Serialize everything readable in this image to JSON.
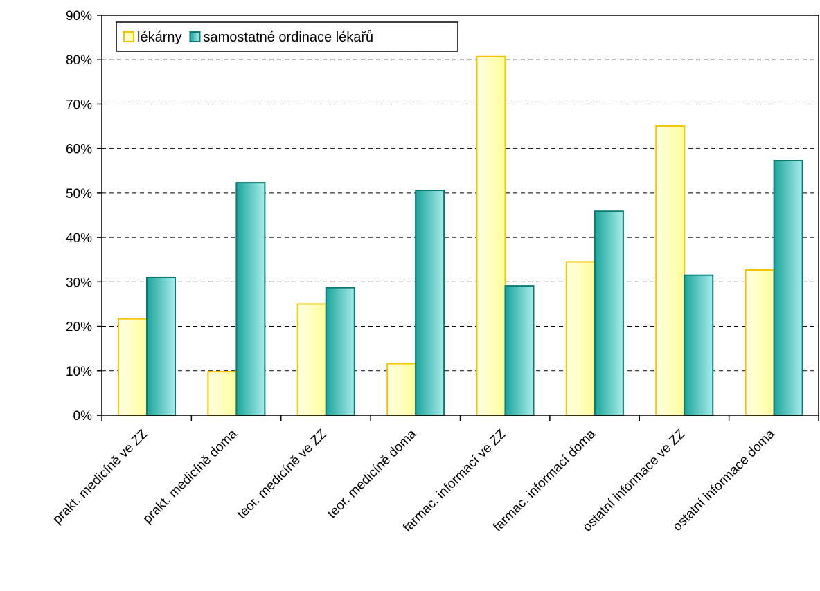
{
  "chart_data": {
    "type": "bar",
    "title": "",
    "xlabel": "",
    "ylabel": "",
    "ylim": [
      0,
      90
    ],
    "y_tick_step": 10,
    "y_tick_suffix": "%",
    "grid": "horizontal dashed",
    "legend_position": "top-left",
    "categories": [
      "prakt. medicíně  ve ZZ",
      "prakt. medicíně doma",
      "teor. medicíně  ve ZZ",
      "teor. medicíně doma",
      "farmac. informací  ve ZZ",
      "farmac. informací doma",
      "ostatní informace ve ZZ",
      "ostatní informace doma"
    ],
    "series": [
      {
        "name": "lékárny",
        "color": "#ffff99",
        "stroke": "#f5c400",
        "values": [
          21.7,
          9.8,
          25.0,
          11.6,
          80.7,
          34.5,
          65.1,
          32.7
        ]
      },
      {
        "name": "samostatné ordinace lékařů",
        "color": "#33b8b0",
        "stroke": "#0a7a72",
        "values": [
          31.0,
          52.3,
          28.7,
          50.6,
          29.1,
          45.9,
          31.5,
          57.3
        ]
      }
    ]
  }
}
